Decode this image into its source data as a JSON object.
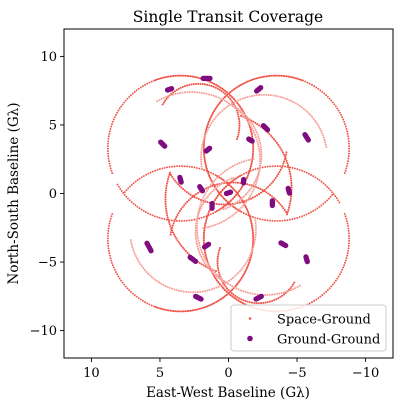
{
  "chart_data": {
    "type": "scatter",
    "title": "Single Transit Coverage",
    "xlabel": "East-West Baseline (Gλ)",
    "ylabel": "North-South Baseline (Gλ)",
    "xlim": [
      12,
      -12
    ],
    "ylim": [
      -12,
      12
    ],
    "xticks": [
      10,
      5,
      0,
      -5,
      -10
    ],
    "yticks": [
      -10,
      -5,
      0,
      5,
      10
    ],
    "xtick_labels": [
      "10",
      "5",
      "0",
      "−5",
      "−10"
    ],
    "ytick_labels": [
      "−10",
      "−5",
      "0",
      "5",
      "10"
    ],
    "grid": false,
    "legend_position": "bottom-right",
    "series": [
      {
        "name": "Space-Ground",
        "color": "#f0564a",
        "marker": "small-dot",
        "arcs": [
          {
            "cx": 3.5,
            "cy": 3.3,
            "r": 5.3,
            "t0": -20,
            "t1": 240
          },
          {
            "cx": -3.5,
            "cy": 3.3,
            "r": 5.3,
            "t0": -60,
            "t1": 200
          },
          {
            "cx": 3.5,
            "cy": -3.3,
            "r": 5.3,
            "t0": 40,
            "t1": 290
          },
          {
            "cx": -3.5,
            "cy": -3.3,
            "r": 5.3,
            "t0": -110,
            "t1": 150
          },
          {
            "cx": 0.3,
            "cy": 3.8,
            "r": 4.6,
            "t0": 190,
            "t1": 330
          },
          {
            "cx": -0.3,
            "cy": -3.8,
            "r": 4.6,
            "t0": 10,
            "t1": 150
          },
          {
            "cx": 1.0,
            "cy": 0.4,
            "r": 5.6,
            "t0": 110,
            "t1": 200
          },
          {
            "cx": -1.0,
            "cy": -0.4,
            "r": 5.6,
            "t0": -70,
            "t1": 20
          },
          {
            "cx": 2.2,
            "cy": 5.0,
            "r": 3.0,
            "t0": 30,
            "t1": 200
          },
          {
            "cx": -2.2,
            "cy": -5.0,
            "r": 3.0,
            "t0": 210,
            "t1": 380
          }
        ]
      },
      {
        "name": "Space-Ground (faint)",
        "color": "#f6a29c",
        "marker": "small-dot",
        "arcs": [
          {
            "cx": 2.7,
            "cy": 2.4,
            "r": 5.0,
            "t0": 60,
            "t1": 260
          },
          {
            "cx": -2.7,
            "cy": -2.4,
            "r": 5.0,
            "t0": 240,
            "t1": 440
          },
          {
            "cx": -2.6,
            "cy": 2.6,
            "r": 4.6,
            "t0": -10,
            "t1": 170
          },
          {
            "cx": 2.6,
            "cy": -2.6,
            "r": 4.6,
            "t0": 170,
            "t1": 350
          },
          {
            "cx": 1.8,
            "cy": 2.8,
            "r": 4.2,
            "t0": 120,
            "t1": 250
          },
          {
            "cx": -1.8,
            "cy": -2.8,
            "r": 4.2,
            "t0": 300,
            "t1": 430
          }
        ]
      },
      {
        "name": "Ground-Ground",
        "color": "#7f0d80",
        "marker": "dot",
        "segments": [
          [
            1.6,
            8.4,
            -0.5,
            0.0
          ],
          [
            -2.2,
            7.6,
            0.3,
            -0.25
          ],
          [
            4.3,
            7.6,
            0.3,
            -0.1
          ],
          [
            -2.7,
            4.8,
            -0.3,
            -0.3
          ],
          [
            -5.7,
            4.1,
            -0.25,
            -0.4
          ],
          [
            4.8,
            3.6,
            0.3,
            0.3
          ],
          [
            -1.6,
            3.9,
            -0.25,
            -0.15
          ],
          [
            1.5,
            3.2,
            -0.25,
            0.2
          ],
          [
            3.5,
            1.0,
            -0.1,
            -0.35
          ],
          [
            -1.1,
            0.9,
            0.0,
            -0.25
          ],
          [
            2.0,
            0.35,
            0.2,
            0.3
          ],
          [
            0.0,
            0.05,
            0.3,
            -0.1
          ],
          [
            -4.4,
            0.2,
            0.1,
            0.35
          ],
          [
            -3.2,
            -0.7,
            0.0,
            -0.35
          ],
          [
            1.2,
            -0.9,
            0.0,
            -0.35
          ],
          [
            5.8,
            -3.9,
            0.3,
            0.55
          ],
          [
            -4.0,
            -3.7,
            -0.35,
            -0.2
          ],
          [
            1.6,
            -3.8,
            -0.3,
            0.2
          ],
          [
            2.6,
            -4.8,
            0.4,
            0.3
          ],
          [
            -5.7,
            -4.8,
            0.1,
            0.35
          ],
          [
            2.2,
            -7.6,
            0.4,
            0.2
          ],
          [
            -2.2,
            -7.6,
            -0.4,
            0.2
          ]
        ]
      }
    ],
    "legend": [
      {
        "label": "Space-Ground",
        "color": "#f0564a",
        "marker": "small-dot"
      },
      {
        "label": "Ground-Ground",
        "color": "#7f0d80",
        "marker": "dot"
      }
    ]
  }
}
